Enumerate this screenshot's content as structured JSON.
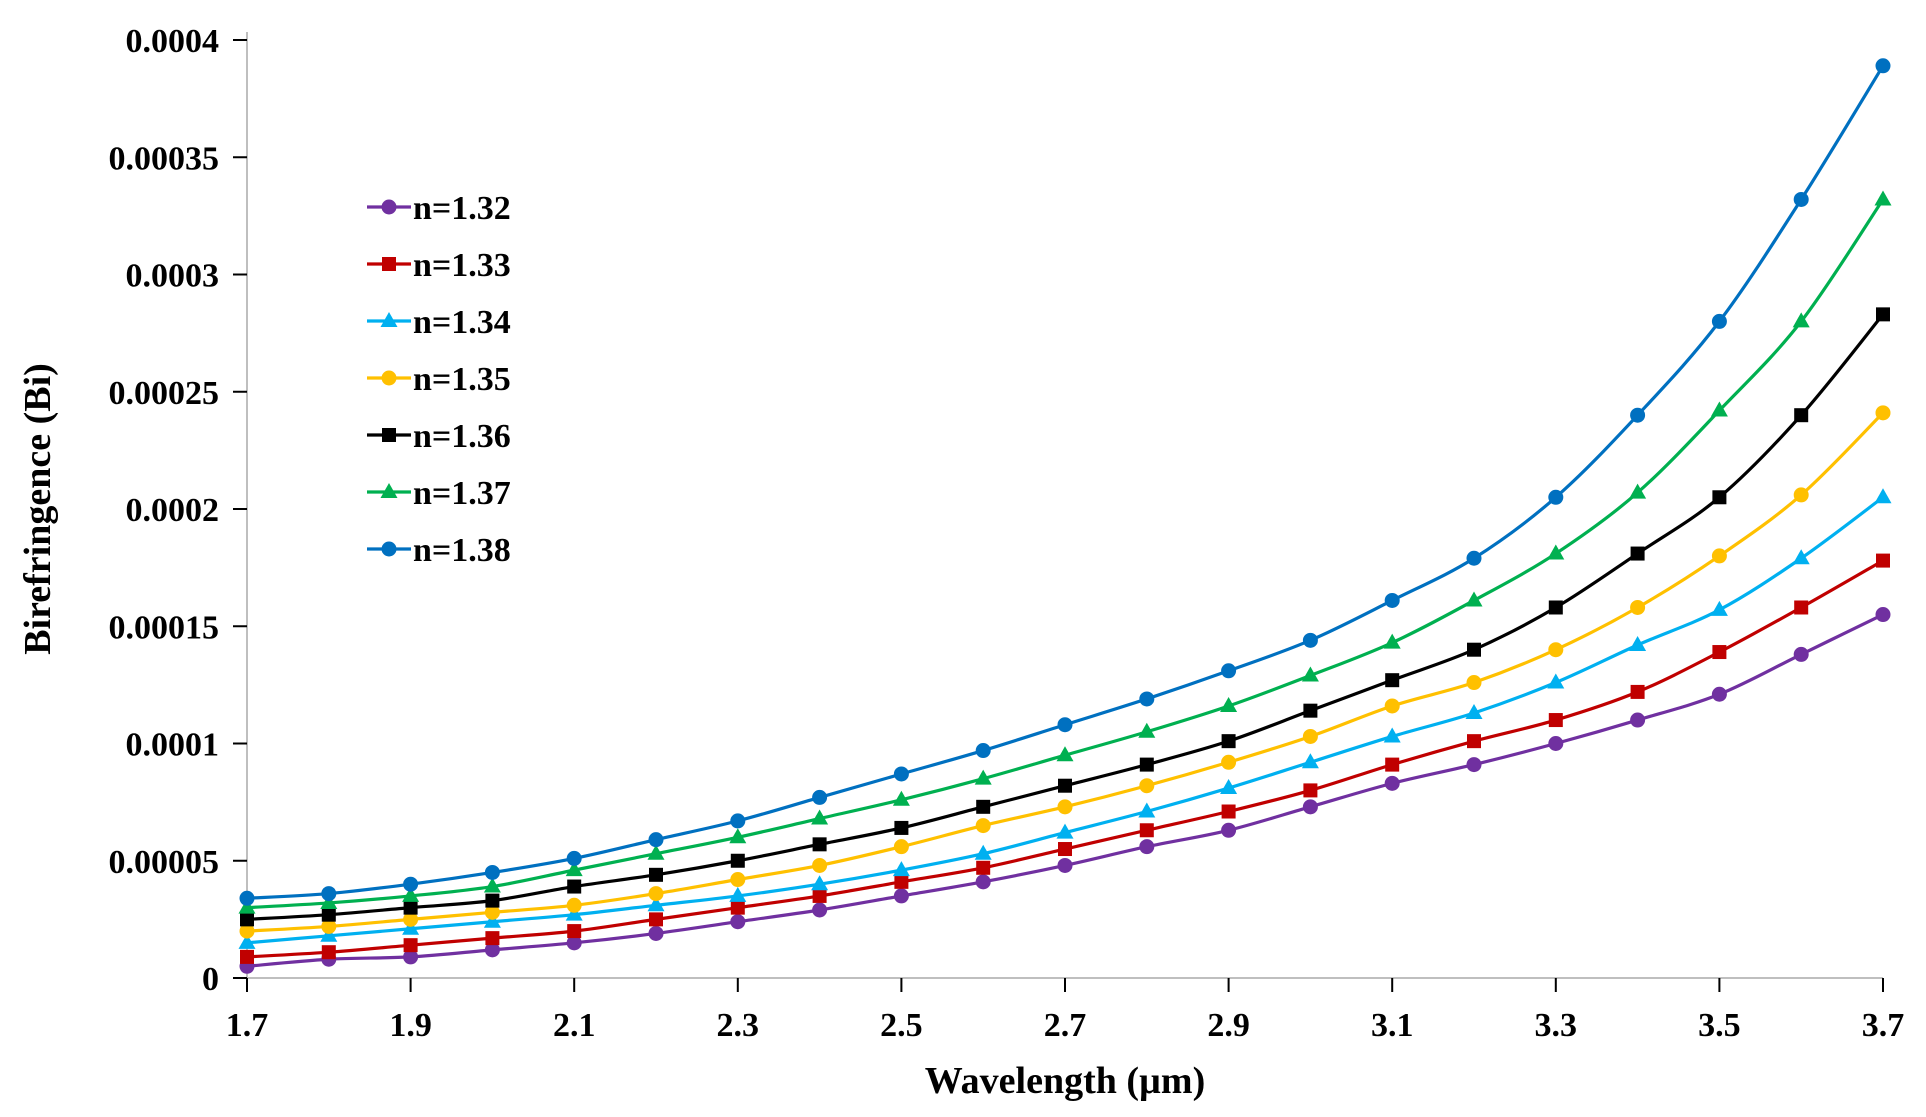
{
  "chart_data": {
    "type": "line",
    "title": "",
    "xlabel": "Wavelength (µm)",
    "ylabel": "Birefringence (Bi)",
    "xlim": [
      1.7,
      3.7
    ],
    "ylim": [
      0,
      0.0004
    ],
    "grid": false,
    "legend_position": "upper-left",
    "x_tick_labels": [
      "1.7",
      "1.9",
      "2.1",
      "2.3",
      "2.5",
      "2.7",
      "2.9",
      "3.1",
      "3.3",
      "3.5",
      "3.7"
    ],
    "y_tick_labels": [
      "0",
      "0.00005",
      "0.0001",
      "0.00015",
      "0.0002",
      "0.00025",
      "0.0003",
      "0.00035",
      "0.0004"
    ],
    "x": [
      1.7,
      1.8,
      1.9,
      2.0,
      2.1,
      2.2,
      2.3,
      2.4,
      2.5,
      2.6,
      2.7,
      2.8,
      2.9,
      3.0,
      3.1,
      3.2,
      3.3,
      3.4,
      3.5,
      3.6,
      3.7
    ],
    "series": [
      {
        "name": "n=1.32",
        "color": "#7030a0",
        "marker": "circle",
        "values": [
          5e-06,
          8e-06,
          9e-06,
          1.2e-05,
          1.5e-05,
          1.9e-05,
          2.4e-05,
          2.9e-05,
          3.5e-05,
          4.1e-05,
          4.8e-05,
          5.6e-05,
          6.3e-05,
          7.3e-05,
          8.3e-05,
          9.1e-05,
          0.0001,
          0.00011,
          0.000121,
          0.000138,
          0.000155
        ]
      },
      {
        "name": "n=1.33",
        "color": "#c00000",
        "marker": "square",
        "values": [
          9e-06,
          1.1e-05,
          1.4e-05,
          1.7e-05,
          2e-05,
          2.5e-05,
          3e-05,
          3.5e-05,
          4.1e-05,
          4.7e-05,
          5.5e-05,
          6.3e-05,
          7.1e-05,
          8e-05,
          9.1e-05,
          0.000101,
          0.00011,
          0.000122,
          0.000139,
          0.000158,
          0.000178
        ]
      },
      {
        "name": "n=1.34",
        "color": "#00b0f0",
        "marker": "triangle",
        "values": [
          1.5e-05,
          1.8e-05,
          2.1e-05,
          2.4e-05,
          2.7e-05,
          3.1e-05,
          3.5e-05,
          4e-05,
          4.6e-05,
          5.3e-05,
          6.2e-05,
          7.1e-05,
          8.1e-05,
          9.2e-05,
          0.000103,
          0.000113,
          0.000126,
          0.000142,
          0.000157,
          0.000179,
          0.000205
        ]
      },
      {
        "name": "n=1.35",
        "color": "#ffc000",
        "marker": "circle",
        "values": [
          2e-05,
          2.2e-05,
          2.5e-05,
          2.8e-05,
          3.1e-05,
          3.6e-05,
          4.2e-05,
          4.8e-05,
          5.6e-05,
          6.5e-05,
          7.3e-05,
          8.2e-05,
          9.2e-05,
          0.000103,
          0.000116,
          0.000126,
          0.00014,
          0.000158,
          0.00018,
          0.000206,
          0.000241
        ]
      },
      {
        "name": "n=1.36",
        "color": "#000000",
        "marker": "square",
        "values": [
          2.5e-05,
          2.7e-05,
          3e-05,
          3.3e-05,
          3.9e-05,
          4.4e-05,
          5e-05,
          5.7e-05,
          6.4e-05,
          7.3e-05,
          8.2e-05,
          9.1e-05,
          0.000101,
          0.000114,
          0.000127,
          0.00014,
          0.000158,
          0.000181,
          0.000205,
          0.00024,
          0.000283
        ]
      },
      {
        "name": "n=1.37",
        "color": "#00b050",
        "marker": "triangle",
        "values": [
          3e-05,
          3.2e-05,
          3.5e-05,
          3.9e-05,
          4.6e-05,
          5.3e-05,
          6e-05,
          6.8e-05,
          7.6e-05,
          8.5e-05,
          9.5e-05,
          0.000105,
          0.000116,
          0.000129,
          0.000143,
          0.000161,
          0.000181,
          0.000207,
          0.000242,
          0.00028,
          0.000332
        ]
      },
      {
        "name": "n=1.38",
        "color": "#0070c0",
        "marker": "circle",
        "values": [
          3.4e-05,
          3.6e-05,
          4e-05,
          4.5e-05,
          5.1e-05,
          5.9e-05,
          6.7e-05,
          7.7e-05,
          8.7e-05,
          9.7e-05,
          0.000108,
          0.000119,
          0.000131,
          0.000144,
          0.000161,
          0.000179,
          0.000205,
          0.00024,
          0.00028,
          0.000332,
          0.000389
        ]
      }
    ]
  }
}
